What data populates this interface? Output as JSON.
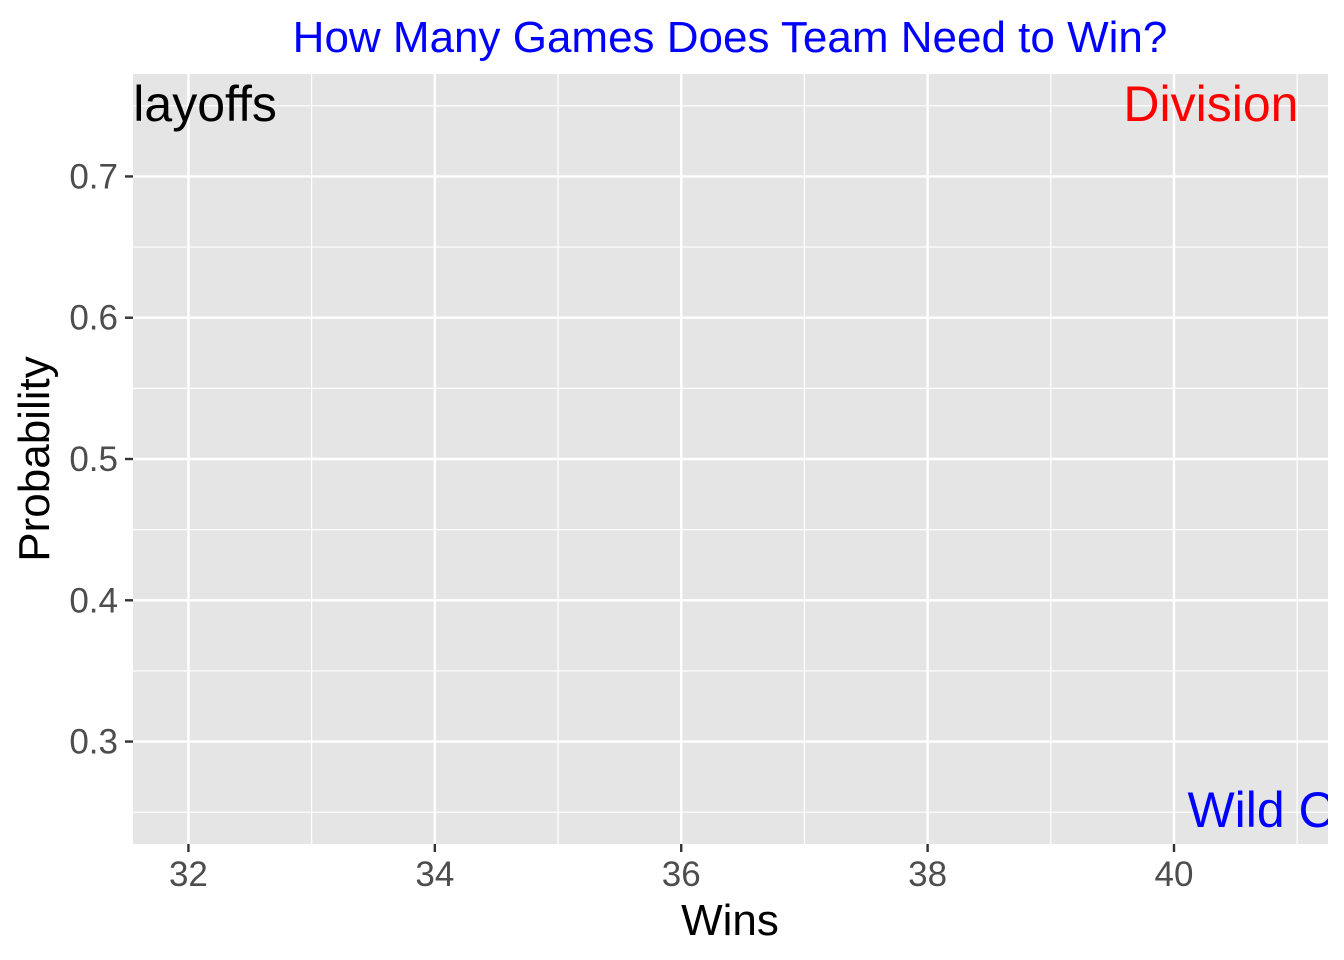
{
  "chart_data": {
    "type": "line",
    "title": "How Many Games Does Team Need to Win?",
    "xlabel": "Wins",
    "ylabel": "Probability",
    "xlim": [
      31.55,
      41.25
    ],
    "ylim": [
      0.2275,
      0.7725
    ],
    "x_ticks": [
      32,
      34,
      36,
      38,
      40
    ],
    "x_tick_labels": [
      "32",
      "34",
      "36",
      "38",
      "40"
    ],
    "x_minor_ticks": [
      33,
      35,
      37,
      39,
      41
    ],
    "y_ticks": [
      0.3,
      0.4,
      0.5,
      0.6,
      0.7
    ],
    "y_tick_labels": [
      "0.3",
      "0.4",
      "0.5",
      "0.6",
      "0.7"
    ],
    "y_minor_ticks": [
      0.25,
      0.35,
      0.45,
      0.55,
      0.65,
      0.75
    ],
    "grid": true,
    "series": [],
    "annotations": [
      {
        "text": "Playoffs",
        "x": 32,
        "y": 0.75,
        "color": "#000000",
        "anchor": "middle"
      },
      {
        "text": "Division",
        "x": 40.3,
        "y": 0.75,
        "color": "#ff0000",
        "anchor": "middle"
      },
      {
        "text": "Wild Card",
        "x": 41,
        "y": 0.25,
        "color": "#0000ff",
        "anchor": "middle"
      }
    ],
    "colors": {
      "title": "#0000ff",
      "panel": "#e5e5e5",
      "grid": "#ffffff",
      "tick_label": "#4d4d4d",
      "axis_title": "#000000"
    }
  }
}
